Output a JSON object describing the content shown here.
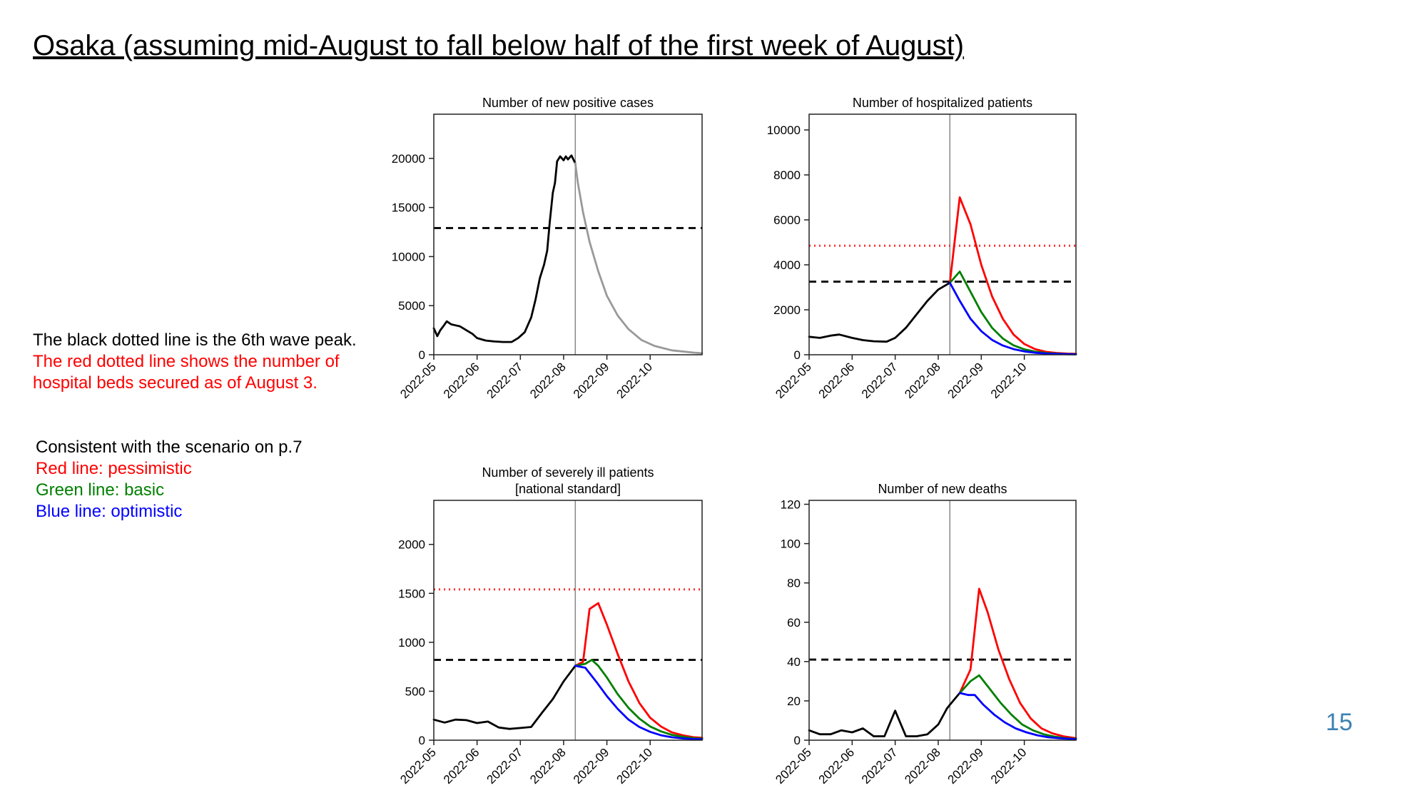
{
  "slide": {
    "title": "Osaka (assuming mid-August to fall below half of the first week of August)",
    "page_number": "15",
    "notes_top": [
      {
        "text": "The black dotted line is the 6th wave peak.",
        "color": "#000000"
      },
      {
        "text": "The red dotted line shows the number of",
        "color": "#ff0000"
      },
      {
        "text": "hospital beds secured as of August 3.",
        "color": "#ff0000"
      }
    ],
    "notes_bottom": [
      {
        "text": "Consistent with the scenario on p.7",
        "color": "#000000"
      },
      {
        "text": "Red line: pessimistic",
        "color": "#ff0000"
      },
      {
        "text": "Green line: basic",
        "color": "#008000"
      },
      {
        "text": "Blue line: optimistic",
        "color": "#0000ff"
      }
    ]
  },
  "chart_data": [
    {
      "type": "line",
      "title": [
        "Number of new positive cases"
      ],
      "xlabel": "",
      "ylabel": "",
      "x_ticks": [
        "2022-05",
        "2022-06",
        "2022-07",
        "2022-08",
        "2022-09",
        "2022-10"
      ],
      "y_ticks": [
        0,
        5000,
        10000,
        15000,
        20000
      ],
      "ylim": [
        0,
        24500
      ],
      "xlim": [
        0,
        6.2
      ],
      "divider_x": 3.27,
      "black_dashed_line": 12900,
      "grid": false,
      "series": [
        {
          "color": "#000000",
          "points": [
            [
              0,
              2700
            ],
            [
              0.08,
              1900
            ],
            [
              0.15,
              2500
            ],
            [
              0.22,
              2900
            ],
            [
              0.3,
              3400
            ],
            [
              0.4,
              3100
            ],
            [
              0.6,
              2900
            ],
            [
              0.75,
              2500
            ],
            [
              0.9,
              2100
            ],
            [
              1.0,
              1700
            ],
            [
              1.2,
              1450
            ],
            [
              1.4,
              1350
            ],
            [
              1.6,
              1300
            ],
            [
              1.8,
              1300
            ],
            [
              1.95,
              1700
            ],
            [
              2.1,
              2300
            ],
            [
              2.25,
              3800
            ],
            [
              2.35,
              5600
            ],
            [
              2.45,
              7800
            ],
            [
              2.55,
              9200
            ],
            [
              2.62,
              10600
            ],
            [
              2.68,
              13500
            ],
            [
              2.75,
              16500
            ],
            [
              2.8,
              17500
            ],
            [
              2.85,
              19700
            ],
            [
              2.92,
              20200
            ],
            [
              3.0,
              19800
            ],
            [
              3.05,
              20200
            ],
            [
              3.1,
              19900
            ],
            [
              3.18,
              20300
            ],
            [
              3.27,
              19500
            ]
          ]
        },
        {
          "color": "#999999",
          "points": [
            [
              3.27,
              19500
            ],
            [
              3.33,
              17500
            ],
            [
              3.45,
              14500
            ],
            [
              3.6,
              11500
            ],
            [
              3.8,
              8500
            ],
            [
              4.0,
              6000
            ],
            [
              4.25,
              4000
            ],
            [
              4.5,
              2600
            ],
            [
              4.8,
              1500
            ],
            [
              5.1,
              900
            ],
            [
              5.5,
              450
            ],
            [
              6.0,
              220
            ],
            [
              6.2,
              150
            ]
          ]
        }
      ]
    },
    {
      "type": "line",
      "title": [
        "Number of hospitalized patients"
      ],
      "xlabel": "",
      "ylabel": "",
      "x_ticks": [
        "2022-05",
        "2022-06",
        "2022-07",
        "2022-08",
        "2022-09",
        "2022-10"
      ],
      "y_ticks": [
        0,
        2000,
        4000,
        6000,
        8000,
        10000
      ],
      "ylim": [
        0,
        10700
      ],
      "xlim": [
        0,
        6.2
      ],
      "divider_x": 3.27,
      "black_dashed_line": 3250,
      "red_dotted_line": 4850,
      "grid": false,
      "series": [
        {
          "color": "#000000",
          "points": [
            [
              0,
              800
            ],
            [
              0.25,
              750
            ],
            [
              0.5,
              850
            ],
            [
              0.7,
              900
            ],
            [
              1.0,
              750
            ],
            [
              1.25,
              650
            ],
            [
              1.5,
              600
            ],
            [
              1.8,
              580
            ],
            [
              2.0,
              750
            ],
            [
              2.25,
              1200
            ],
            [
              2.5,
              1800
            ],
            [
              2.75,
              2400
            ],
            [
              3.0,
              2900
            ],
            [
              3.27,
              3200
            ]
          ]
        },
        {
          "color": "#ff0000",
          "points": [
            [
              3.27,
              3200
            ],
            [
              3.5,
              7000
            ],
            [
              3.75,
              5800
            ],
            [
              4.0,
              4000
            ],
            [
              4.25,
              2600
            ],
            [
              4.5,
              1600
            ],
            [
              4.75,
              900
            ],
            [
              5.0,
              480
            ],
            [
              5.25,
              250
            ],
            [
              5.5,
              130
            ],
            [
              5.75,
              80
            ],
            [
              6.0,
              50
            ],
            [
              6.2,
              40
            ]
          ]
        },
        {
          "color": "#008000",
          "points": [
            [
              3.27,
              3200
            ],
            [
              3.5,
              3700
            ],
            [
              3.75,
              2800
            ],
            [
              4.0,
              1900
            ],
            [
              4.25,
              1200
            ],
            [
              4.5,
              720
            ],
            [
              4.75,
              420
            ],
            [
              5.0,
              240
            ],
            [
              5.25,
              140
            ],
            [
              5.5,
              80
            ],
            [
              5.75,
              50
            ],
            [
              6.0,
              30
            ],
            [
              6.2,
              25
            ]
          ]
        },
        {
          "color": "#0000ff",
          "points": [
            [
              3.27,
              3200
            ],
            [
              3.5,
              2400
            ],
            [
              3.75,
              1600
            ],
            [
              4.0,
              1050
            ],
            [
              4.25,
              660
            ],
            [
              4.5,
              410
            ],
            [
              4.75,
              250
            ],
            [
              5.0,
              150
            ],
            [
              5.25,
              90
            ],
            [
              5.5,
              55
            ],
            [
              5.75,
              35
            ],
            [
              6.0,
              25
            ],
            [
              6.2,
              20
            ]
          ]
        }
      ]
    },
    {
      "type": "line",
      "title": [
        "Number of severely ill patients",
        "[national standard]"
      ],
      "xlabel": "",
      "ylabel": "",
      "x_ticks": [
        "2022-05",
        "2022-06",
        "2022-07",
        "2022-08",
        "2022-09",
        "2022-10"
      ],
      "y_ticks": [
        0,
        500,
        1000,
        1500,
        2000
      ],
      "ylim": [
        0,
        2450
      ],
      "xlim": [
        0,
        6.2
      ],
      "divider_x": 3.27,
      "black_dashed_line": 820,
      "red_dotted_line": 1540,
      "grid": false,
      "series": [
        {
          "color": "#000000",
          "points": [
            [
              0,
              210
            ],
            [
              0.25,
              180
            ],
            [
              0.5,
              210
            ],
            [
              0.75,
              205
            ],
            [
              1.0,
              175
            ],
            [
              1.25,
              190
            ],
            [
              1.5,
              130
            ],
            [
              1.75,
              115
            ],
            [
              2.0,
              125
            ],
            [
              2.25,
              135
            ],
            [
              2.5,
              280
            ],
            [
              2.75,
              420
            ],
            [
              3.0,
              600
            ],
            [
              3.27,
              760
            ]
          ]
        },
        {
          "color": "#ff0000",
          "points": [
            [
              3.27,
              760
            ],
            [
              3.45,
              800
            ],
            [
              3.6,
              1340
            ],
            [
              3.8,
              1400
            ],
            [
              4.0,
              1180
            ],
            [
              4.25,
              880
            ],
            [
              4.5,
              600
            ],
            [
              4.75,
              380
            ],
            [
              5.0,
              230
            ],
            [
              5.25,
              140
            ],
            [
              5.5,
              80
            ],
            [
              5.75,
              50
            ],
            [
              6.0,
              30
            ],
            [
              6.2,
              25
            ]
          ]
        },
        {
          "color": "#008000",
          "points": [
            [
              3.27,
              760
            ],
            [
              3.5,
              780
            ],
            [
              3.65,
              820
            ],
            [
              3.8,
              760
            ],
            [
              4.0,
              640
            ],
            [
              4.25,
              470
            ],
            [
              4.5,
              330
            ],
            [
              4.75,
              220
            ],
            [
              5.0,
              140
            ],
            [
              5.25,
              90
            ],
            [
              5.5,
              55
            ],
            [
              5.75,
              35
            ],
            [
              6.0,
              20
            ],
            [
              6.2,
              15
            ]
          ]
        },
        {
          "color": "#0000ff",
          "points": [
            [
              3.27,
              760
            ],
            [
              3.5,
              740
            ],
            [
              3.75,
              600
            ],
            [
              4.0,
              450
            ],
            [
              4.25,
              320
            ],
            [
              4.5,
              210
            ],
            [
              4.75,
              135
            ],
            [
              5.0,
              85
            ],
            [
              5.25,
              50
            ],
            [
              5.5,
              30
            ],
            [
              5.75,
              18
            ],
            [
              6.0,
              12
            ],
            [
              6.2,
              10
            ]
          ]
        }
      ]
    },
    {
      "type": "line",
      "title": [
        "Number of new deaths"
      ],
      "xlabel": "",
      "ylabel": "",
      "x_ticks": [
        "2022-05",
        "2022-06",
        "2022-07",
        "2022-08",
        "2022-09",
        "2022-10"
      ],
      "y_ticks": [
        0,
        20,
        40,
        60,
        80,
        100,
        120
      ],
      "ylim": [
        0,
        122
      ],
      "xlim": [
        0,
        6.2
      ],
      "divider_x": 3.27,
      "black_dashed_line": 41,
      "grid": false,
      "series": [
        {
          "color": "#000000",
          "points": [
            [
              0,
              5
            ],
            [
              0.25,
              3
            ],
            [
              0.5,
              3
            ],
            [
              0.75,
              5
            ],
            [
              1.0,
              4
            ],
            [
              1.25,
              6
            ],
            [
              1.5,
              2
            ],
            [
              1.75,
              2
            ],
            [
              2.0,
              15
            ],
            [
              2.25,
              2
            ],
            [
              2.5,
              2
            ],
            [
              2.75,
              3
            ],
            [
              3.0,
              8
            ],
            [
              3.2,
              16
            ],
            [
              3.27,
              18
            ],
            [
              3.5,
              24
            ]
          ]
        },
        {
          "color": "#ff0000",
          "points": [
            [
              3.5,
              24
            ],
            [
              3.75,
              36
            ],
            [
              3.95,
              77
            ],
            [
              4.15,
              65
            ],
            [
              4.4,
              46
            ],
            [
              4.65,
              31
            ],
            [
              4.9,
              19
            ],
            [
              5.15,
              11
            ],
            [
              5.4,
              6
            ],
            [
              5.65,
              3.5
            ],
            [
              5.9,
              2
            ],
            [
              6.2,
              1
            ]
          ]
        },
        {
          "color": "#008000",
          "points": [
            [
              3.5,
              24
            ],
            [
              3.75,
              30
            ],
            [
              3.95,
              33
            ],
            [
              4.2,
              26
            ],
            [
              4.45,
              19
            ],
            [
              4.7,
              13
            ],
            [
              4.95,
              8
            ],
            [
              5.2,
              5
            ],
            [
              5.45,
              3
            ],
            [
              5.7,
              1.8
            ],
            [
              5.95,
              1
            ],
            [
              6.2,
              0.6
            ]
          ]
        },
        {
          "color": "#0000ff",
          "points": [
            [
              3.5,
              24
            ],
            [
              3.7,
              23
            ],
            [
              3.85,
              23
            ],
            [
              4.05,
              18
            ],
            [
              4.3,
              13
            ],
            [
              4.55,
              9
            ],
            [
              4.8,
              6
            ],
            [
              5.05,
              4
            ],
            [
              5.3,
              2.5
            ],
            [
              5.55,
              1.5
            ],
            [
              5.8,
              1
            ],
            [
              6.2,
              0.5
            ]
          ]
        }
      ]
    }
  ]
}
